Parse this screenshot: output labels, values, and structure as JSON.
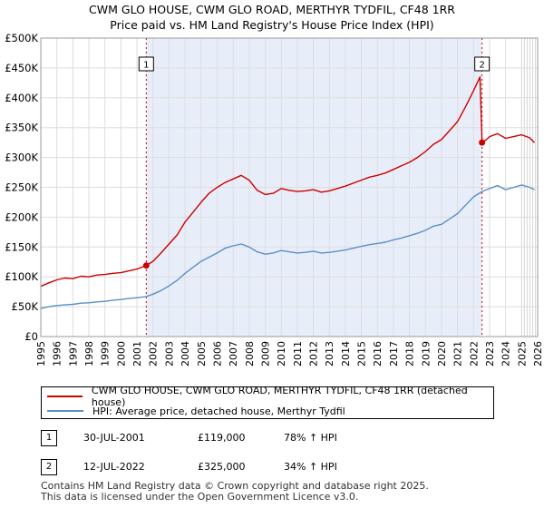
{
  "title_line1": "CWM GLO HOUSE, CWM GLO ROAD, MERTHYR TYDFIL, CF48 1RR",
  "title_line2": "Price paid vs. HM Land Registry's House Price Index (HPI)",
  "chart_data": {
    "type": "line",
    "title": "CWM GLO HOUSE, CWM GLO ROAD, MERTHYR TYDFIL, CF48 1RR — Price paid vs. HM Land Registry's House Price Index (HPI)",
    "xlim": [
      1995,
      2026
    ],
    "ylim": [
      0,
      500000
    ],
    "y_ticks": [
      {
        "value": 0,
        "label": "£0"
      },
      {
        "value": 50000,
        "label": "£50K"
      },
      {
        "value": 100000,
        "label": "£100K"
      },
      {
        "value": 150000,
        "label": "£150K"
      },
      {
        "value": 200000,
        "label": "£200K"
      },
      {
        "value": 250000,
        "label": "£250K"
      },
      {
        "value": 300000,
        "label": "£300K"
      },
      {
        "value": 350000,
        "label": "£350K"
      },
      {
        "value": 400000,
        "label": "£400K"
      },
      {
        "value": 450000,
        "label": "£450K"
      },
      {
        "value": 500000,
        "label": "£500K"
      }
    ],
    "x_ticks": [
      "1995",
      "1996",
      "1997",
      "1998",
      "1999",
      "2000",
      "2001",
      "2002",
      "2003",
      "2004",
      "2005",
      "2006",
      "2007",
      "2008",
      "2009",
      "2010",
      "2011",
      "2012",
      "2013",
      "2014",
      "2015",
      "2016",
      "2017",
      "2018",
      "2019",
      "2020",
      "2021",
      "2022",
      "2023",
      "2024",
      "2025",
      "2026"
    ],
    "grid": true,
    "shaded_region": [
      2001.58,
      2022.53
    ],
    "forecast_from": 2025.0,
    "series": [
      {
        "name": "CWM GLO HOUSE, CWM GLO ROAD, MERTHYR TYDFIL, CF48 1RR (detached house)",
        "color": "#cc0000",
        "points": [
          [
            1995.0,
            84000
          ],
          [
            1995.5,
            90000
          ],
          [
            1996.0,
            95000
          ],
          [
            1996.5,
            98000
          ],
          [
            1997.0,
            97000
          ],
          [
            1997.5,
            101000
          ],
          [
            1998.0,
            100000
          ],
          [
            1998.5,
            103000
          ],
          [
            1999.0,
            104000
          ],
          [
            1999.5,
            106000
          ],
          [
            2000.0,
            107000
          ],
          [
            2000.5,
            110000
          ],
          [
            2001.0,
            113000
          ],
          [
            2001.58,
            119000
          ],
          [
            2002.0,
            126000
          ],
          [
            2002.5,
            140000
          ],
          [
            2003.0,
            155000
          ],
          [
            2003.5,
            170000
          ],
          [
            2004.0,
            192000
          ],
          [
            2004.5,
            208000
          ],
          [
            2005.0,
            225000
          ],
          [
            2005.5,
            240000
          ],
          [
            2006.0,
            250000
          ],
          [
            2006.5,
            258000
          ],
          [
            2007.0,
            264000
          ],
          [
            2007.5,
            270000
          ],
          [
            2008.0,
            262000
          ],
          [
            2008.5,
            245000
          ],
          [
            2009.0,
            238000
          ],
          [
            2009.5,
            240000
          ],
          [
            2010.0,
            248000
          ],
          [
            2010.5,
            245000
          ],
          [
            2011.0,
            243000
          ],
          [
            2011.5,
            244000
          ],
          [
            2012.0,
            246000
          ],
          [
            2012.5,
            242000
          ],
          [
            2013.0,
            244000
          ],
          [
            2013.5,
            248000
          ],
          [
            2014.0,
            252000
          ],
          [
            2014.5,
            257000
          ],
          [
            2015.0,
            262000
          ],
          [
            2015.5,
            267000
          ],
          [
            2016.0,
            270000
          ],
          [
            2016.5,
            274000
          ],
          [
            2017.0,
            280000
          ],
          [
            2017.5,
            286000
          ],
          [
            2018.0,
            292000
          ],
          [
            2018.5,
            300000
          ],
          [
            2019.0,
            310000
          ],
          [
            2019.5,
            322000
          ],
          [
            2020.0,
            330000
          ],
          [
            2020.5,
            345000
          ],
          [
            2021.0,
            360000
          ],
          [
            2021.5,
            385000
          ],
          [
            2022.0,
            412000
          ],
          [
            2022.4,
            435000
          ],
          [
            2022.53,
            325000
          ],
          [
            2022.8,
            330000
          ],
          [
            2023.0,
            335000
          ],
          [
            2023.5,
            340000
          ],
          [
            2024.0,
            332000
          ],
          [
            2024.5,
            335000
          ],
          [
            2025.0,
            338000
          ],
          [
            2025.5,
            333000
          ],
          [
            2025.8,
            325000
          ]
        ]
      },
      {
        "name": "HPI: Average price, detached house, Merthyr Tydfil",
        "color": "#5b8fc9",
        "points": [
          [
            1995.0,
            47000
          ],
          [
            1995.5,
            50000
          ],
          [
            1996.0,
            52000
          ],
          [
            1996.5,
            53000
          ],
          [
            1997.0,
            54000
          ],
          [
            1997.5,
            56000
          ],
          [
            1998.0,
            56500
          ],
          [
            1998.5,
            58000
          ],
          [
            1999.0,
            59000
          ],
          [
            1999.5,
            61000
          ],
          [
            2000.0,
            62000
          ],
          [
            2000.5,
            64000
          ],
          [
            2001.0,
            65000
          ],
          [
            2001.58,
            67000
          ],
          [
            2002.0,
            71000
          ],
          [
            2002.5,
            77000
          ],
          [
            2003.0,
            85000
          ],
          [
            2003.5,
            94000
          ],
          [
            2004.0,
            106000
          ],
          [
            2004.5,
            116000
          ],
          [
            2005.0,
            126000
          ],
          [
            2005.5,
            133000
          ],
          [
            2006.0,
            140000
          ],
          [
            2006.5,
            148000
          ],
          [
            2007.0,
            152000
          ],
          [
            2007.5,
            155000
          ],
          [
            2008.0,
            150000
          ],
          [
            2008.5,
            142000
          ],
          [
            2009.0,
            138000
          ],
          [
            2009.5,
            140000
          ],
          [
            2010.0,
            144000
          ],
          [
            2010.5,
            142000
          ],
          [
            2011.0,
            140000
          ],
          [
            2011.5,
            141000
          ],
          [
            2012.0,
            143000
          ],
          [
            2012.5,
            140000
          ],
          [
            2013.0,
            141000
          ],
          [
            2013.5,
            143000
          ],
          [
            2014.0,
            145000
          ],
          [
            2014.5,
            148000
          ],
          [
            2015.0,
            151000
          ],
          [
            2015.5,
            154000
          ],
          [
            2016.0,
            156000
          ],
          [
            2016.5,
            158000
          ],
          [
            2017.0,
            162000
          ],
          [
            2017.5,
            165000
          ],
          [
            2018.0,
            169000
          ],
          [
            2018.5,
            173000
          ],
          [
            2019.0,
            178000
          ],
          [
            2019.5,
            185000
          ],
          [
            2020.0,
            188000
          ],
          [
            2020.5,
            197000
          ],
          [
            2021.0,
            206000
          ],
          [
            2021.5,
            220000
          ],
          [
            2022.0,
            234000
          ],
          [
            2022.53,
            243000
          ],
          [
            2023.0,
            248000
          ],
          [
            2023.5,
            253000
          ],
          [
            2024.0,
            246000
          ],
          [
            2024.5,
            250000
          ],
          [
            2025.0,
            254000
          ],
          [
            2025.5,
            250000
          ],
          [
            2025.8,
            246000
          ]
        ]
      }
    ],
    "markers": [
      {
        "label": "1",
        "x": 2001.58,
        "y": 119000
      },
      {
        "label": "2",
        "x": 2022.53,
        "y": 325000
      }
    ],
    "legend_position": "bottom"
  },
  "legend": {
    "red_label": "CWM GLO HOUSE, CWM GLO ROAD, MERTHYR TYDFIL, CF48 1RR (detached house)",
    "blue_label": "HPI: Average price, detached house, Merthyr Tydfil"
  },
  "transactions": [
    {
      "num": "1",
      "date": "30-JUL-2001",
      "price": "£119,000",
      "pct": "78% ↑ HPI"
    },
    {
      "num": "2",
      "date": "12-JUL-2022",
      "price": "£325,000",
      "pct": "34% ↑ HPI"
    }
  ],
  "footer": {
    "line1": "Contains HM Land Registry data © Crown copyright and database right 2025.",
    "line2": "This data is licensed under the Open Government Licence v3.0."
  },
  "colors": {
    "red": "#cc0000",
    "blue": "#5b8fc9",
    "shade": "#e8eef9",
    "grid": "#dddddd"
  }
}
